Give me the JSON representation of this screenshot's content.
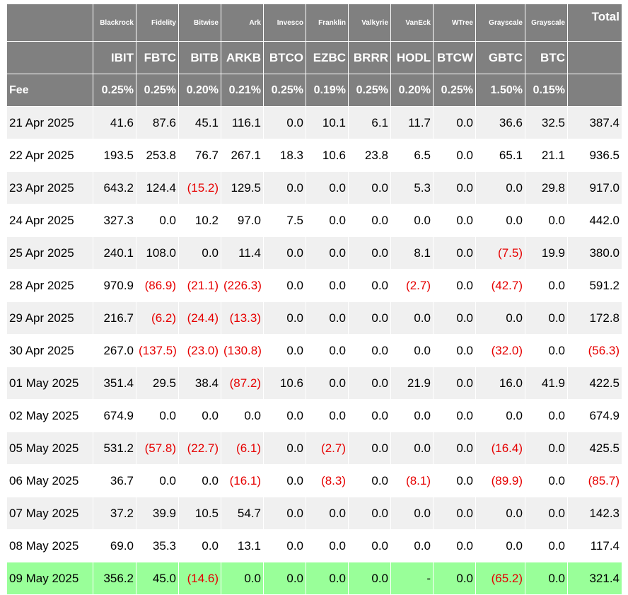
{
  "issuers": [
    "Blackrock",
    "Fidelity",
    "Bitwise",
    "Ark",
    "Invesco",
    "Franklin",
    "Valkyrie",
    "VanEck",
    "WTree",
    "Grayscale",
    "Grayscale"
  ],
  "tickers": [
    "IBIT",
    "FBTC",
    "BITB",
    "ARKB",
    "BTCO",
    "EZBC",
    "BRRR",
    "HODL",
    "BTCW",
    "GBTC",
    "BTC"
  ],
  "fee_label": "Fee",
  "fees": [
    "0.25%",
    "0.25%",
    "0.20%",
    "0.21%",
    "0.25%",
    "0.19%",
    "0.25%",
    "0.20%",
    "0.25%",
    "1.50%",
    "0.15%"
  ],
  "total_label": "Total",
  "negative_color": "#e60000",
  "highlight_color": "#99ff99",
  "rows": [
    {
      "date": "21 Apr 2025",
      "values": [
        "41.6",
        "87.6",
        "45.1",
        "116.1",
        "0.0",
        "10.1",
        "6.1",
        "11.7",
        "0.0",
        "36.6",
        "32.5"
      ],
      "total": "387.4"
    },
    {
      "date": "22 Apr 2025",
      "values": [
        "193.5",
        "253.8",
        "76.7",
        "267.1",
        "18.3",
        "10.6",
        "23.8",
        "6.5",
        "0.0",
        "65.1",
        "21.1"
      ],
      "total": "936.5"
    },
    {
      "date": "23 Apr 2025",
      "values": [
        "643.2",
        "124.4",
        "(15.2)",
        "129.5",
        "0.0",
        "0.0",
        "0.0",
        "5.3",
        "0.0",
        "0.0",
        "29.8"
      ],
      "total": "917.0"
    },
    {
      "date": "24 Apr 2025",
      "values": [
        "327.3",
        "0.0",
        "10.2",
        "97.0",
        "7.5",
        "0.0",
        "0.0",
        "0.0",
        "0.0",
        "0.0",
        "0.0"
      ],
      "total": "442.0"
    },
    {
      "date": "25 Apr 2025",
      "values": [
        "240.1",
        "108.0",
        "0.0",
        "11.4",
        "0.0",
        "0.0",
        "0.0",
        "8.1",
        "0.0",
        "(7.5)",
        "19.9"
      ],
      "total": "380.0"
    },
    {
      "date": "28 Apr 2025",
      "values": [
        "970.9",
        "(86.9)",
        "(21.1)",
        "(226.3)",
        "0.0",
        "0.0",
        "0.0",
        "(2.7)",
        "0.0",
        "(42.7)",
        "0.0"
      ],
      "total": "591.2"
    },
    {
      "date": "29 Apr 2025",
      "values": [
        "216.7",
        "(6.2)",
        "(24.4)",
        "(13.3)",
        "0.0",
        "0.0",
        "0.0",
        "0.0",
        "0.0",
        "0.0",
        "0.0"
      ],
      "total": "172.8"
    },
    {
      "date": "30 Apr 2025",
      "values": [
        "267.0",
        "(137.5)",
        "(23.0)",
        "(130.8)",
        "0.0",
        "0.0",
        "0.0",
        "0.0",
        "0.0",
        "(32.0)",
        "0.0"
      ],
      "total": "(56.3)"
    },
    {
      "date": "01 May 2025",
      "values": [
        "351.4",
        "29.5",
        "38.4",
        "(87.2)",
        "10.6",
        "0.0",
        "0.0",
        "21.9",
        "0.0",
        "16.0",
        "41.9"
      ],
      "total": "422.5"
    },
    {
      "date": "02 May 2025",
      "values": [
        "674.9",
        "0.0",
        "0.0",
        "0.0",
        "0.0",
        "0.0",
        "0.0",
        "0.0",
        "0.0",
        "0.0",
        "0.0"
      ],
      "total": "674.9"
    },
    {
      "date": "05 May 2025",
      "values": [
        "531.2",
        "(57.8)",
        "(22.7)",
        "(6.1)",
        "0.0",
        "(2.7)",
        "0.0",
        "0.0",
        "0.0",
        "(16.4)",
        "0.0"
      ],
      "total": "425.5"
    },
    {
      "date": "06 May 2025",
      "values": [
        "36.7",
        "0.0",
        "0.0",
        "(16.1)",
        "0.0",
        "(8.3)",
        "0.0",
        "(8.1)",
        "0.0",
        "(89.9)",
        "0.0"
      ],
      "total": "(85.7)"
    },
    {
      "date": "07 May 2025",
      "values": [
        "37.2",
        "39.9",
        "10.5",
        "54.7",
        "0.0",
        "0.0",
        "0.0",
        "0.0",
        "0.0",
        "0.0",
        "0.0"
      ],
      "total": "142.3"
    },
    {
      "date": "08 May 2025",
      "values": [
        "69.0",
        "35.3",
        "0.0",
        "13.1",
        "0.0",
        "0.0",
        "0.0",
        "0.0",
        "0.0",
        "0.0",
        "0.0"
      ],
      "total": "117.4"
    },
    {
      "date": "09 May 2025",
      "values": [
        "356.2",
        "45.0",
        "(14.6)",
        "0.0",
        "0.0",
        "0.0",
        "0.0",
        "-",
        "0.0",
        "(65.2)",
        "0.0"
      ],
      "total": "321.4",
      "highlight": true
    }
  ]
}
